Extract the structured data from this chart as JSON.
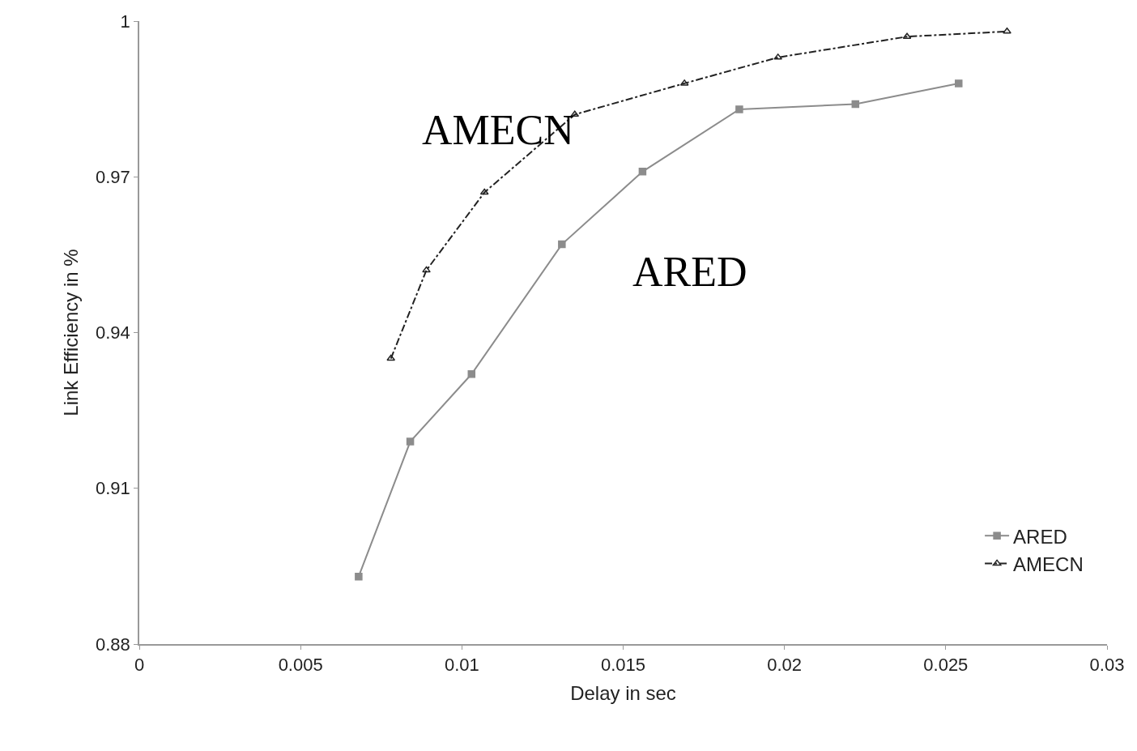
{
  "chart_data": {
    "type": "line",
    "xlabel": "Delay in sec",
    "ylabel": "Link Efficiency in %",
    "xlim": [
      0,
      0.03
    ],
    "xticks": [
      0,
      0.005,
      0.01,
      0.015,
      0.02,
      0.025,
      0.03
    ],
    "ylim": [
      0.88,
      1
    ],
    "yticks": [
      0.88,
      0.91,
      0.94,
      0.97,
      1
    ],
    "legend": "bottom right",
    "series": [
      {
        "name": "ARED",
        "color": "#8c8c8c",
        "marker": "square",
        "line_style": "solid",
        "x": [
          0.0068,
          0.0084,
          0.0103,
          0.0131,
          0.0156,
          0.0186,
          0.0222,
          0.0254
        ],
        "values": [
          0.893,
          0.919,
          0.932,
          0.957,
          0.971,
          0.983,
          0.984,
          0.988
        ]
      },
      {
        "name": "AMECN",
        "color": "#222222",
        "marker": "triangle",
        "line_style": "dashed",
        "x": [
          0.0078,
          0.0089,
          0.0107,
          0.0135,
          0.0169,
          0.0198,
          0.0238,
          0.0269
        ],
        "values": [
          0.935,
          0.952,
          0.967,
          0.982,
          0.988,
          0.993,
          0.997,
          0.998
        ]
      }
    ],
    "annotations": [
      "AMECN",
      "ARED"
    ]
  }
}
